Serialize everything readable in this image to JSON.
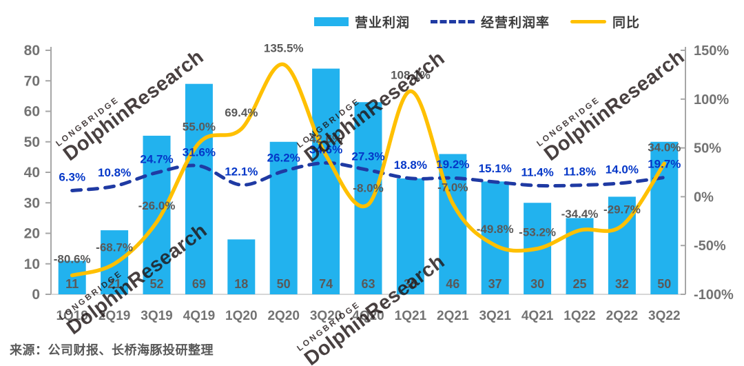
{
  "legend": [
    {
      "label": "营业利润"
    },
    {
      "label": "经营利润率"
    },
    {
      "label": "同比"
    }
  ],
  "chart_data": {
    "type": "combo",
    "title": "",
    "categories": [
      "1Q19",
      "2Q19",
      "3Q19",
      "4Q19",
      "1Q20",
      "2Q20",
      "3Q20",
      "4Q20",
      "1Q21",
      "2Q21",
      "3Q21",
      "4Q21",
      "1Q22",
      "2Q22",
      "3Q22"
    ],
    "series": [
      {
        "name": "营业利润",
        "type": "bar",
        "axis": "left",
        "values": [
          11,
          21,
          52,
          69,
          18,
          50,
          74,
          63,
          38,
          46,
          37,
          30,
          25,
          32,
          50
        ],
        "color": "#22B2EE",
        "value_label_color": "#595959"
      },
      {
        "name": "经营利润率",
        "type": "dashed-line",
        "axis": "right",
        "unit": "%",
        "values": [
          6.3,
          10.8,
          24.7,
          31.6,
          12.1,
          26.2,
          34.6,
          27.3,
          18.8,
          19.2,
          15.1,
          11.4,
          11.8,
          14.0,
          19.7
        ],
        "color": "#1F3AA3",
        "label_color": "#0437C8"
      },
      {
        "name": "同比",
        "type": "line",
        "axis": "right",
        "unit": "%",
        "values": [
          -80.6,
          -68.7,
          -26.0,
          55.0,
          69.4,
          135.5,
          42.6,
          -8.0,
          108.1,
          -7.0,
          -49.8,
          -53.2,
          -34.4,
          -29.7,
          34.0
        ],
        "color": "#FFC000",
        "label_color": "#595959"
      }
    ],
    "left_axis": {
      "min": 0,
      "max": 80,
      "step": 10,
      "ticks": [
        "0",
        "10",
        "20",
        "30",
        "40",
        "50",
        "60",
        "70",
        "80"
      ]
    },
    "right_axis": {
      "min": -100,
      "max": 150,
      "step": 50,
      "ticks": [
        "-100%",
        "-50%",
        "0%",
        "50%",
        "100%",
        "150%"
      ]
    },
    "grid": false,
    "legend_position": "top",
    "axis_label_color": "#737373",
    "axis_line_color": "#A6A6A6"
  },
  "source": "来源：公司财报、长桥海豚投研整理",
  "watermark": {
    "line1": "LONGBRIDGE",
    "line2": "DolphinResearch"
  }
}
